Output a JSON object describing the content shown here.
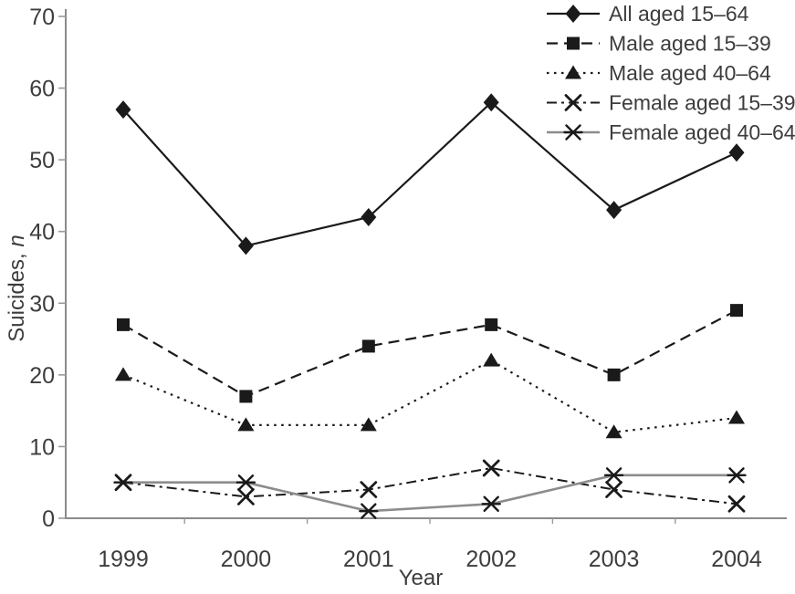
{
  "chart_data": {
    "type": "line",
    "title": "",
    "xlabel": "Year",
    "ylabel": "Suicides, n",
    "ylabel_main": "Suicides, ",
    "ylabel_italic_suffix": "n",
    "ylim": [
      0,
      70
    ],
    "ytick_step": 10,
    "ytick_labels": [
      "0",
      "10",
      "20",
      "30",
      "40",
      "50",
      "60",
      "70"
    ],
    "x": [
      "1999",
      "2000",
      "2001",
      "2002",
      "2003",
      "2004"
    ],
    "grid": false,
    "legend_position": "top-right-inside",
    "series": [
      {
        "name": "All aged 15–64",
        "marker": "diamond",
        "line": "solid",
        "color": "#1a1a1a",
        "values": [
          57,
          38,
          42,
          58,
          43,
          51
        ]
      },
      {
        "name": "Male aged 15–39",
        "marker": "square",
        "line": "dashed",
        "color": "#1a1a1a",
        "values": [
          27,
          17,
          24,
          27,
          20,
          29
        ]
      },
      {
        "name": "Male aged 40–64",
        "marker": "triangle",
        "line": "dotted",
        "color": "#1a1a1a",
        "values": [
          20,
          13,
          13,
          22,
          12,
          14
        ]
      },
      {
        "name": "Female aged 15–39",
        "marker": "x",
        "line": "dashdot",
        "color": "#1a1a1a",
        "values": [
          5,
          3,
          4,
          7,
          4,
          2
        ]
      },
      {
        "name": "Female aged 40–64",
        "marker": "star",
        "line": "solid",
        "color": "#8c8c8c",
        "marker_color": "#1a1a1a",
        "values": [
          5,
          5,
          1,
          2,
          6,
          6
        ]
      }
    ],
    "colors": {
      "axis": "#8a8a8a",
      "tick": "#9a9a9a",
      "text": "#3d3d3d",
      "background": "#ffffff"
    }
  }
}
